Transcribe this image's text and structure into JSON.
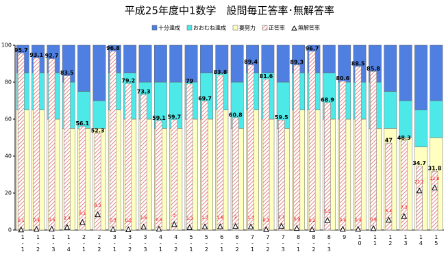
{
  "chart_data": {
    "type": "bar",
    "title": "平成25年度中1数学　設問毎正答率･無解答率",
    "categories": [
      "1-1",
      "1-2",
      "1-3",
      "1-4",
      "2-1",
      "2-2",
      "3-1",
      "3-2",
      "3-3",
      "4-1",
      "4-2",
      "5-1",
      "5-2",
      "6-1",
      "6-2",
      "7-1",
      "7-2",
      "7-3",
      "8-1",
      "8-2",
      "8-3",
      "9",
      "10",
      "11",
      "12",
      "13",
      "14",
      "15"
    ],
    "series": [
      {
        "name": "十分達成",
        "color": "#4f7fe0",
        "values": [
          15,
          15,
          15,
          20,
          25,
          30,
          15,
          15,
          20,
          20,
          20,
          20,
          15,
          15,
          20,
          15,
          15,
          20,
          15,
          15,
          15,
          20,
          20,
          20,
          25,
          30,
          35,
          30
        ]
      },
      {
        "name": "おおむね達成",
        "color": "#4de8e8",
        "values": [
          20,
          20,
          25,
          25,
          20,
          15,
          20,
          25,
          20,
          25,
          25,
          20,
          25,
          20,
          25,
          20,
          25,
          25,
          20,
          20,
          25,
          20,
          20,
          25,
          20,
          20,
          20,
          20
        ]
      },
      {
        "name": "要努力",
        "color": "#ffffc0",
        "values": [
          65,
          65,
          60,
          55,
          55,
          55,
          65,
          60,
          60,
          55,
          55,
          60,
          60,
          65,
          55,
          65,
          60,
          55,
          65,
          65,
          60,
          60,
          60,
          55,
          55,
          50,
          45,
          50
        ]
      },
      {
        "name": "正答率",
        "color": "#e06060",
        "values": [
          95.7,
          93.1,
          92.7,
          83.5,
          56.1,
          52.3,
          96.8,
          79.2,
          73.3,
          59.1,
          59.7,
          79.0,
          69.7,
          83.8,
          60.8,
          89.4,
          81.6,
          59.5,
          89.3,
          96.7,
          68.9,
          80.6,
          88.5,
          85.8,
          47.0,
          48.3,
          34.7,
          31.8
        ]
      },
      {
        "name": "無解答率",
        "color": "#ff0000",
        "values": [
          0.1,
          0.4,
          0.5,
          1.4,
          4.1,
          8.3,
          0.3,
          0.2,
          1.6,
          0.5,
          3.0,
          1.3,
          1.7,
          1.8,
          2.0,
          1.7,
          0.3,
          2.1,
          0.9,
          0.2,
          5.2,
          0.4,
          0.4,
          0.8,
          5.4,
          7.3,
          21.2,
          22.8
        ]
      }
    ],
    "ylim": [
      0,
      100
    ],
    "yticks": [
      0,
      20,
      40,
      60,
      80,
      100
    ],
    "grid": false,
    "legend": "top-right"
  }
}
